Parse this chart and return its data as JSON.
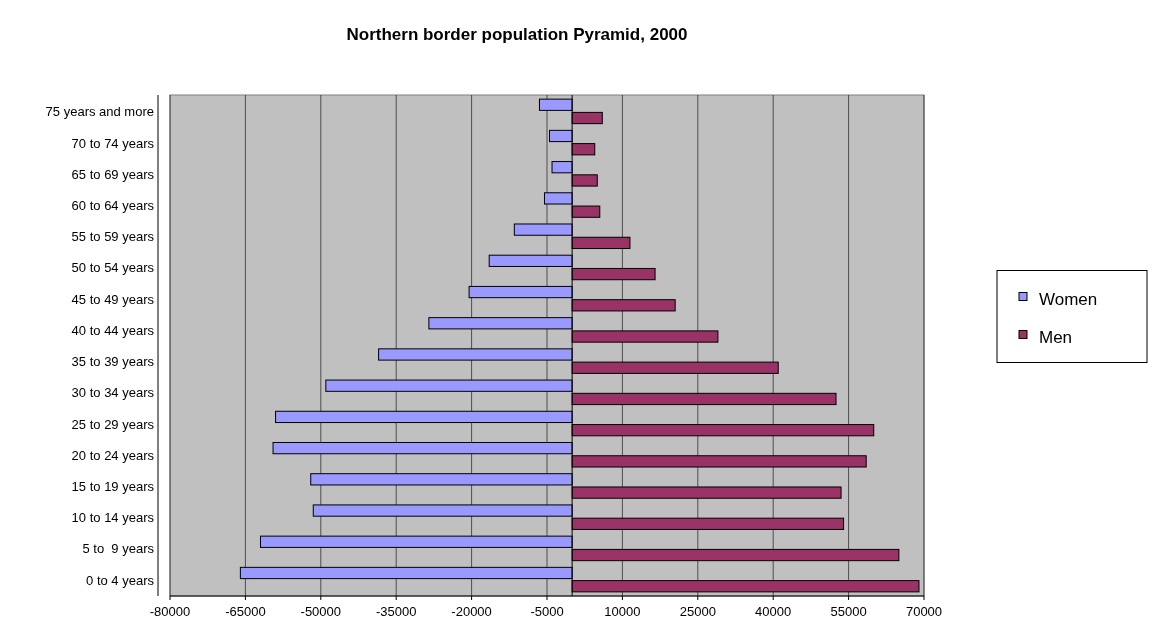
{
  "chart_data": {
    "type": "bar",
    "orientation": "horizontal",
    "title": "Northern border population Pyramid, 2000",
    "categories": [
      "75 years and more",
      "70 to 74 years",
      "65 to 69 years",
      "60 to 64 years",
      "55 to 59 years",
      "50 to 54 years",
      "45 to 49 years",
      "40 to 44 years",
      "35 to 39 years",
      "30 to 34 years",
      "25 to 29 years",
      "20 to 24 years",
      "15 to 19 years",
      "10 to 14 years",
      "5 to  9 years",
      "0 to 4 years"
    ],
    "series": [
      {
        "name": "Women",
        "color": "#9999ff",
        "values": [
          -6500,
          -4500,
          -4000,
          -5500,
          -11500,
          -16500,
          -20500,
          -28500,
          -38500,
          -49000,
          -59000,
          -59500,
          -52000,
          -51500,
          -62000,
          -66000
        ]
      },
      {
        "name": "Men",
        "color": "#993366",
        "values": [
          6000,
          4500,
          5000,
          5500,
          11500,
          16500,
          20500,
          29000,
          41000,
          52500,
          60000,
          58500,
          53500,
          54000,
          65000,
          69000
        ]
      }
    ],
    "xlim": [
      -80000,
      70000
    ],
    "xticks": [
      -80000,
      -65000,
      -50000,
      -35000,
      -20000,
      -5000,
      10000,
      25000,
      40000,
      55000,
      70000
    ],
    "grid": "x",
    "legend": "right"
  }
}
